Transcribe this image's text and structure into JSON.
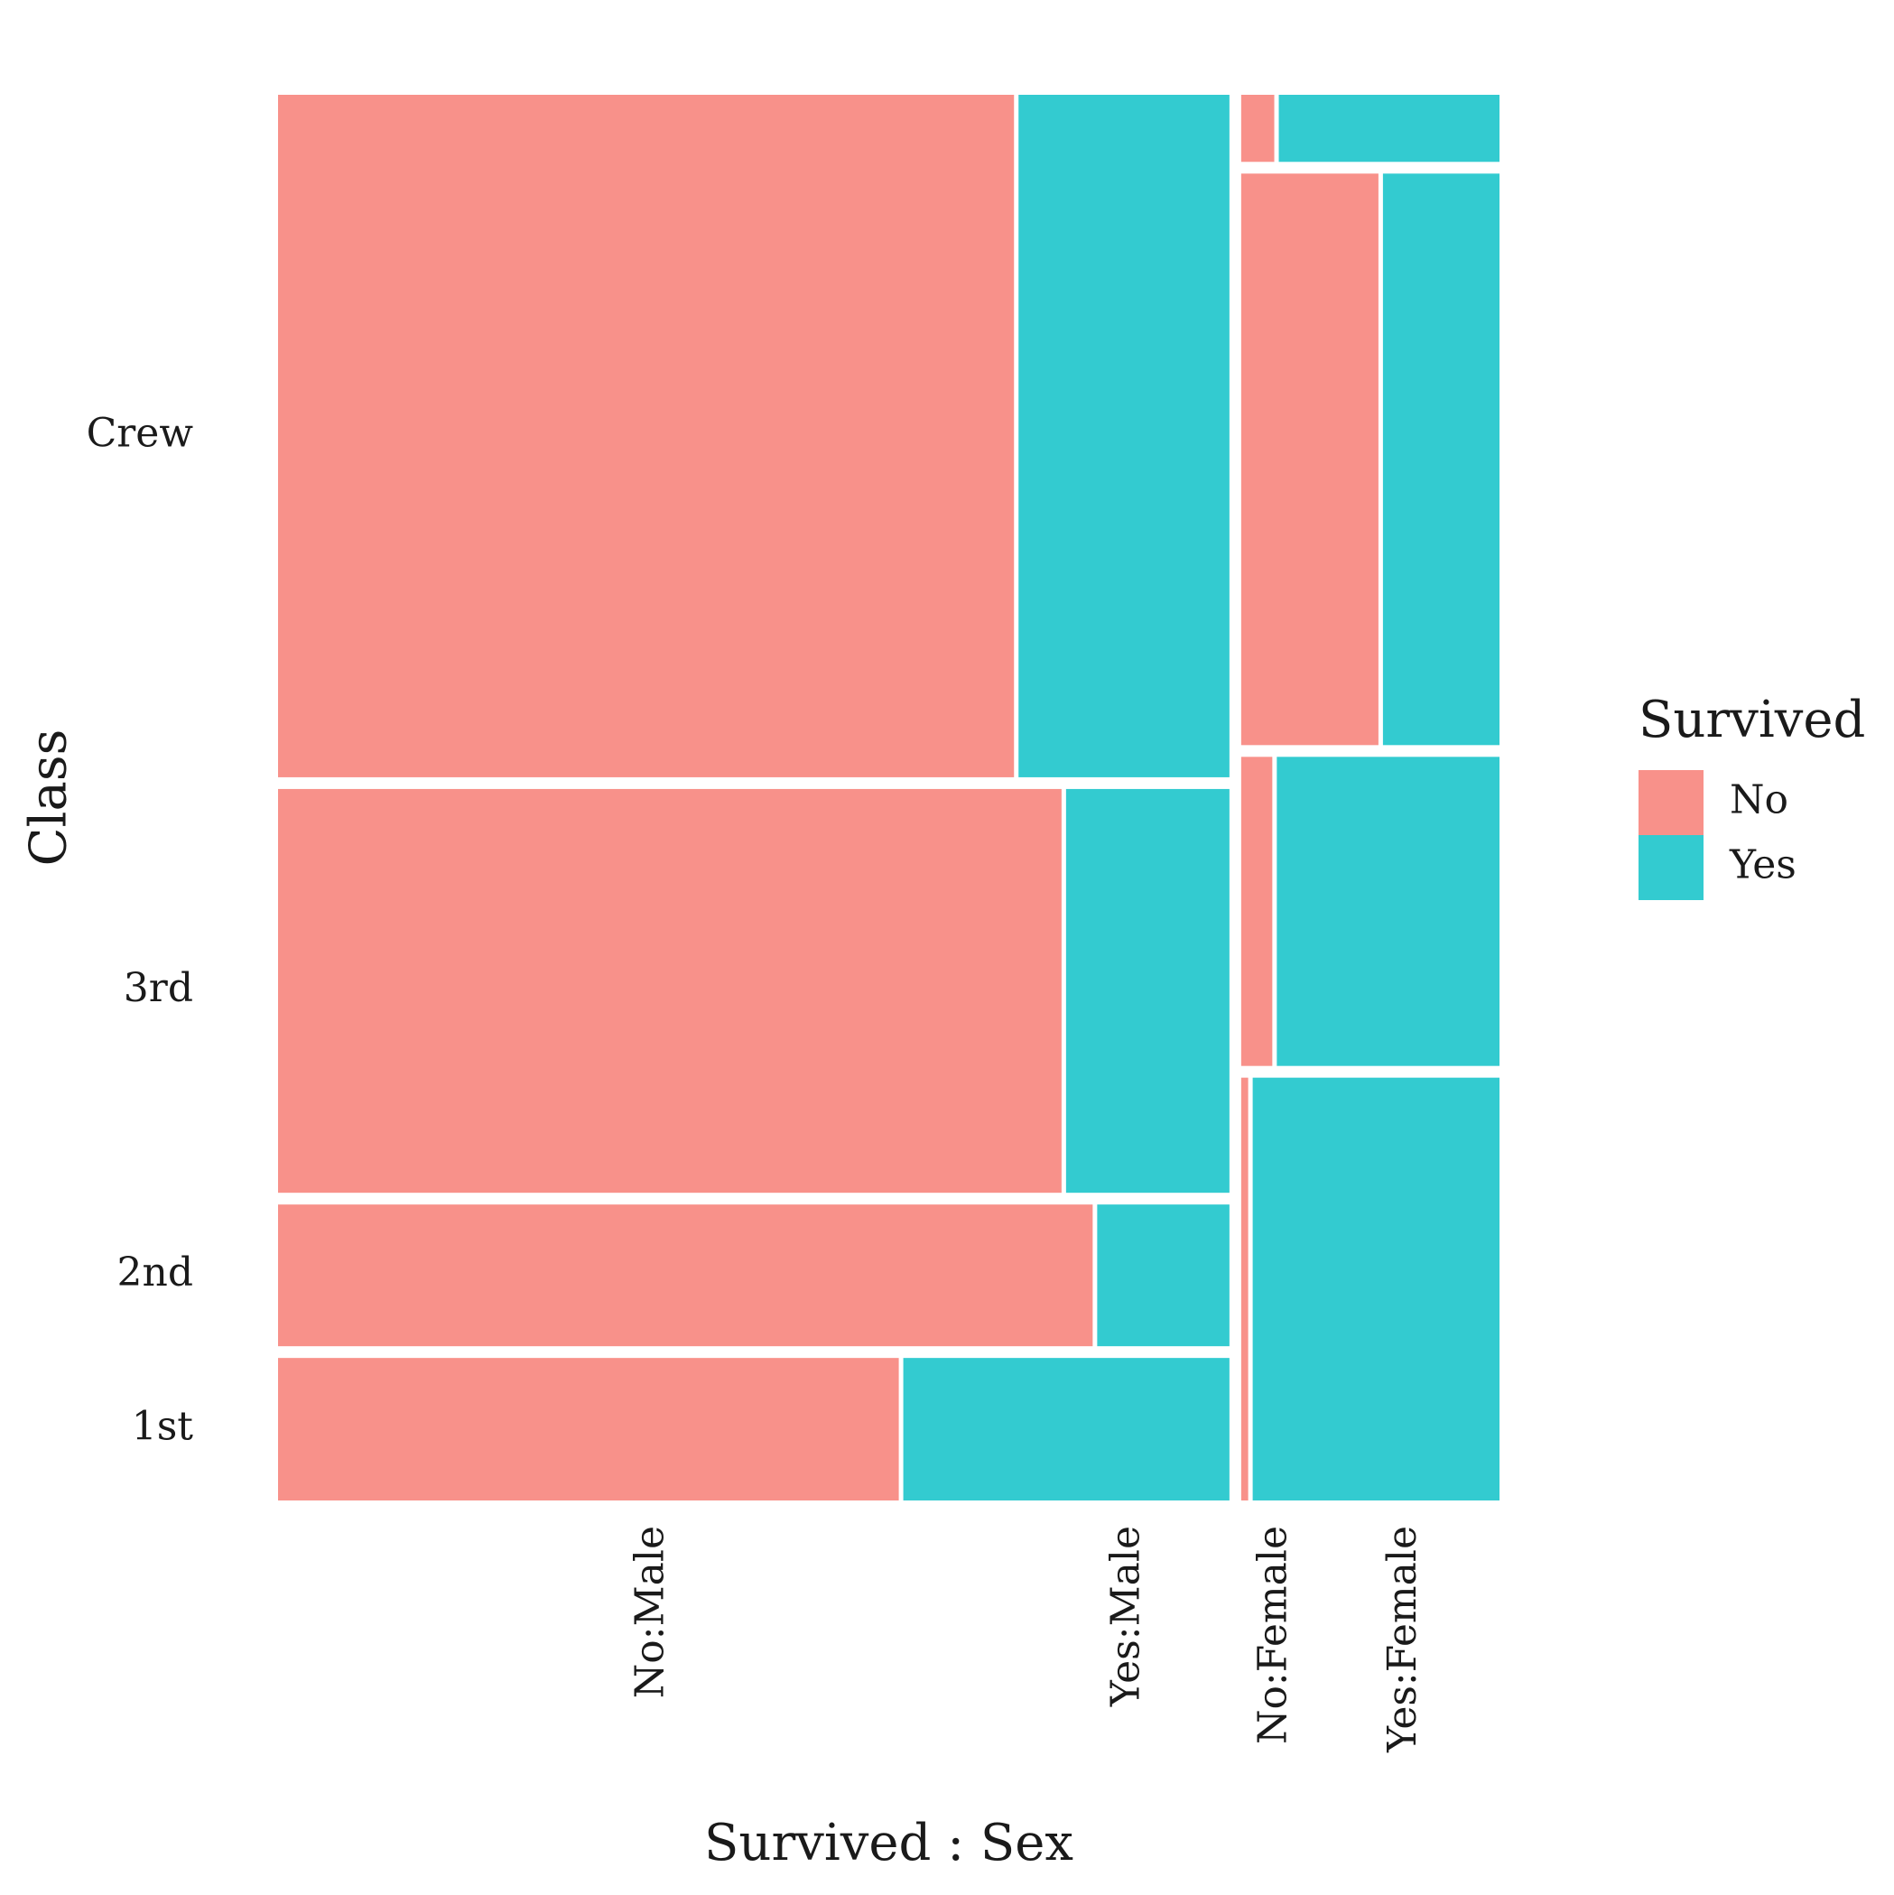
{
  "chart_data": {
    "type": "mosaic",
    "title": "",
    "xlabel": "Survived : Sex",
    "ylabel": "Class",
    "x_categories": [
      "No:Male",
      "Yes:Male",
      "No:Female",
      "Yes:Female"
    ],
    "y_categories": [
      "1st",
      "2nd",
      "3rd",
      "Crew"
    ],
    "sex_groups": [
      {
        "sex": "Male",
        "classes": [
          {
            "class": "1st",
            "No": 118,
            "Yes": 62
          },
          {
            "class": "2nd",
            "No": 154,
            "Yes": 25
          },
          {
            "class": "3rd",
            "No": 422,
            "Yes": 88
          },
          {
            "class": "Crew",
            "No": 670,
            "Yes": 192
          }
        ]
      },
      {
        "sex": "Female",
        "classes": [
          {
            "class": "1st",
            "No": 4,
            "Yes": 141
          },
          {
            "class": "2nd",
            "No": 13,
            "Yes": 93
          },
          {
            "class": "3rd",
            "No": 106,
            "Yes": 90
          },
          {
            "class": "Crew",
            "No": 3,
            "Yes": 20
          }
        ]
      }
    ],
    "legend": {
      "title": "Survived",
      "placement": "right",
      "entries": [
        {
          "label": "No",
          "color": "#F8918A"
        },
        {
          "label": "Yes",
          "color": "#33CBD0"
        }
      ]
    },
    "colors": {
      "No": "#F8918A",
      "Yes": "#33CBD0",
      "background": "#FFFFFF"
    },
    "grid": false
  }
}
